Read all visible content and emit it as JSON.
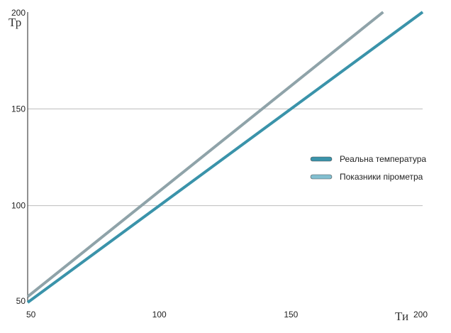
{
  "chart_data": {
    "type": "line",
    "xlabel": "Ти",
    "ylabel": "Тр",
    "xlim": [
      50,
      200
    ],
    "ylim": [
      50,
      200
    ],
    "x_ticks": [
      50,
      100,
      150,
      200
    ],
    "y_ticks": [
      50,
      100,
      150,
      200
    ],
    "grid": "horizontal",
    "legend_position": "right",
    "series": [
      {
        "name": "Реальна температура",
        "color": "#3A93AA",
        "x": [
          50,
          200
        ],
        "y": [
          50,
          200
        ]
      },
      {
        "name": "Показники пірометра",
        "color": "#8FA3A9",
        "x": [
          50,
          185
        ],
        "y": [
          53,
          200
        ]
      }
    ]
  }
}
